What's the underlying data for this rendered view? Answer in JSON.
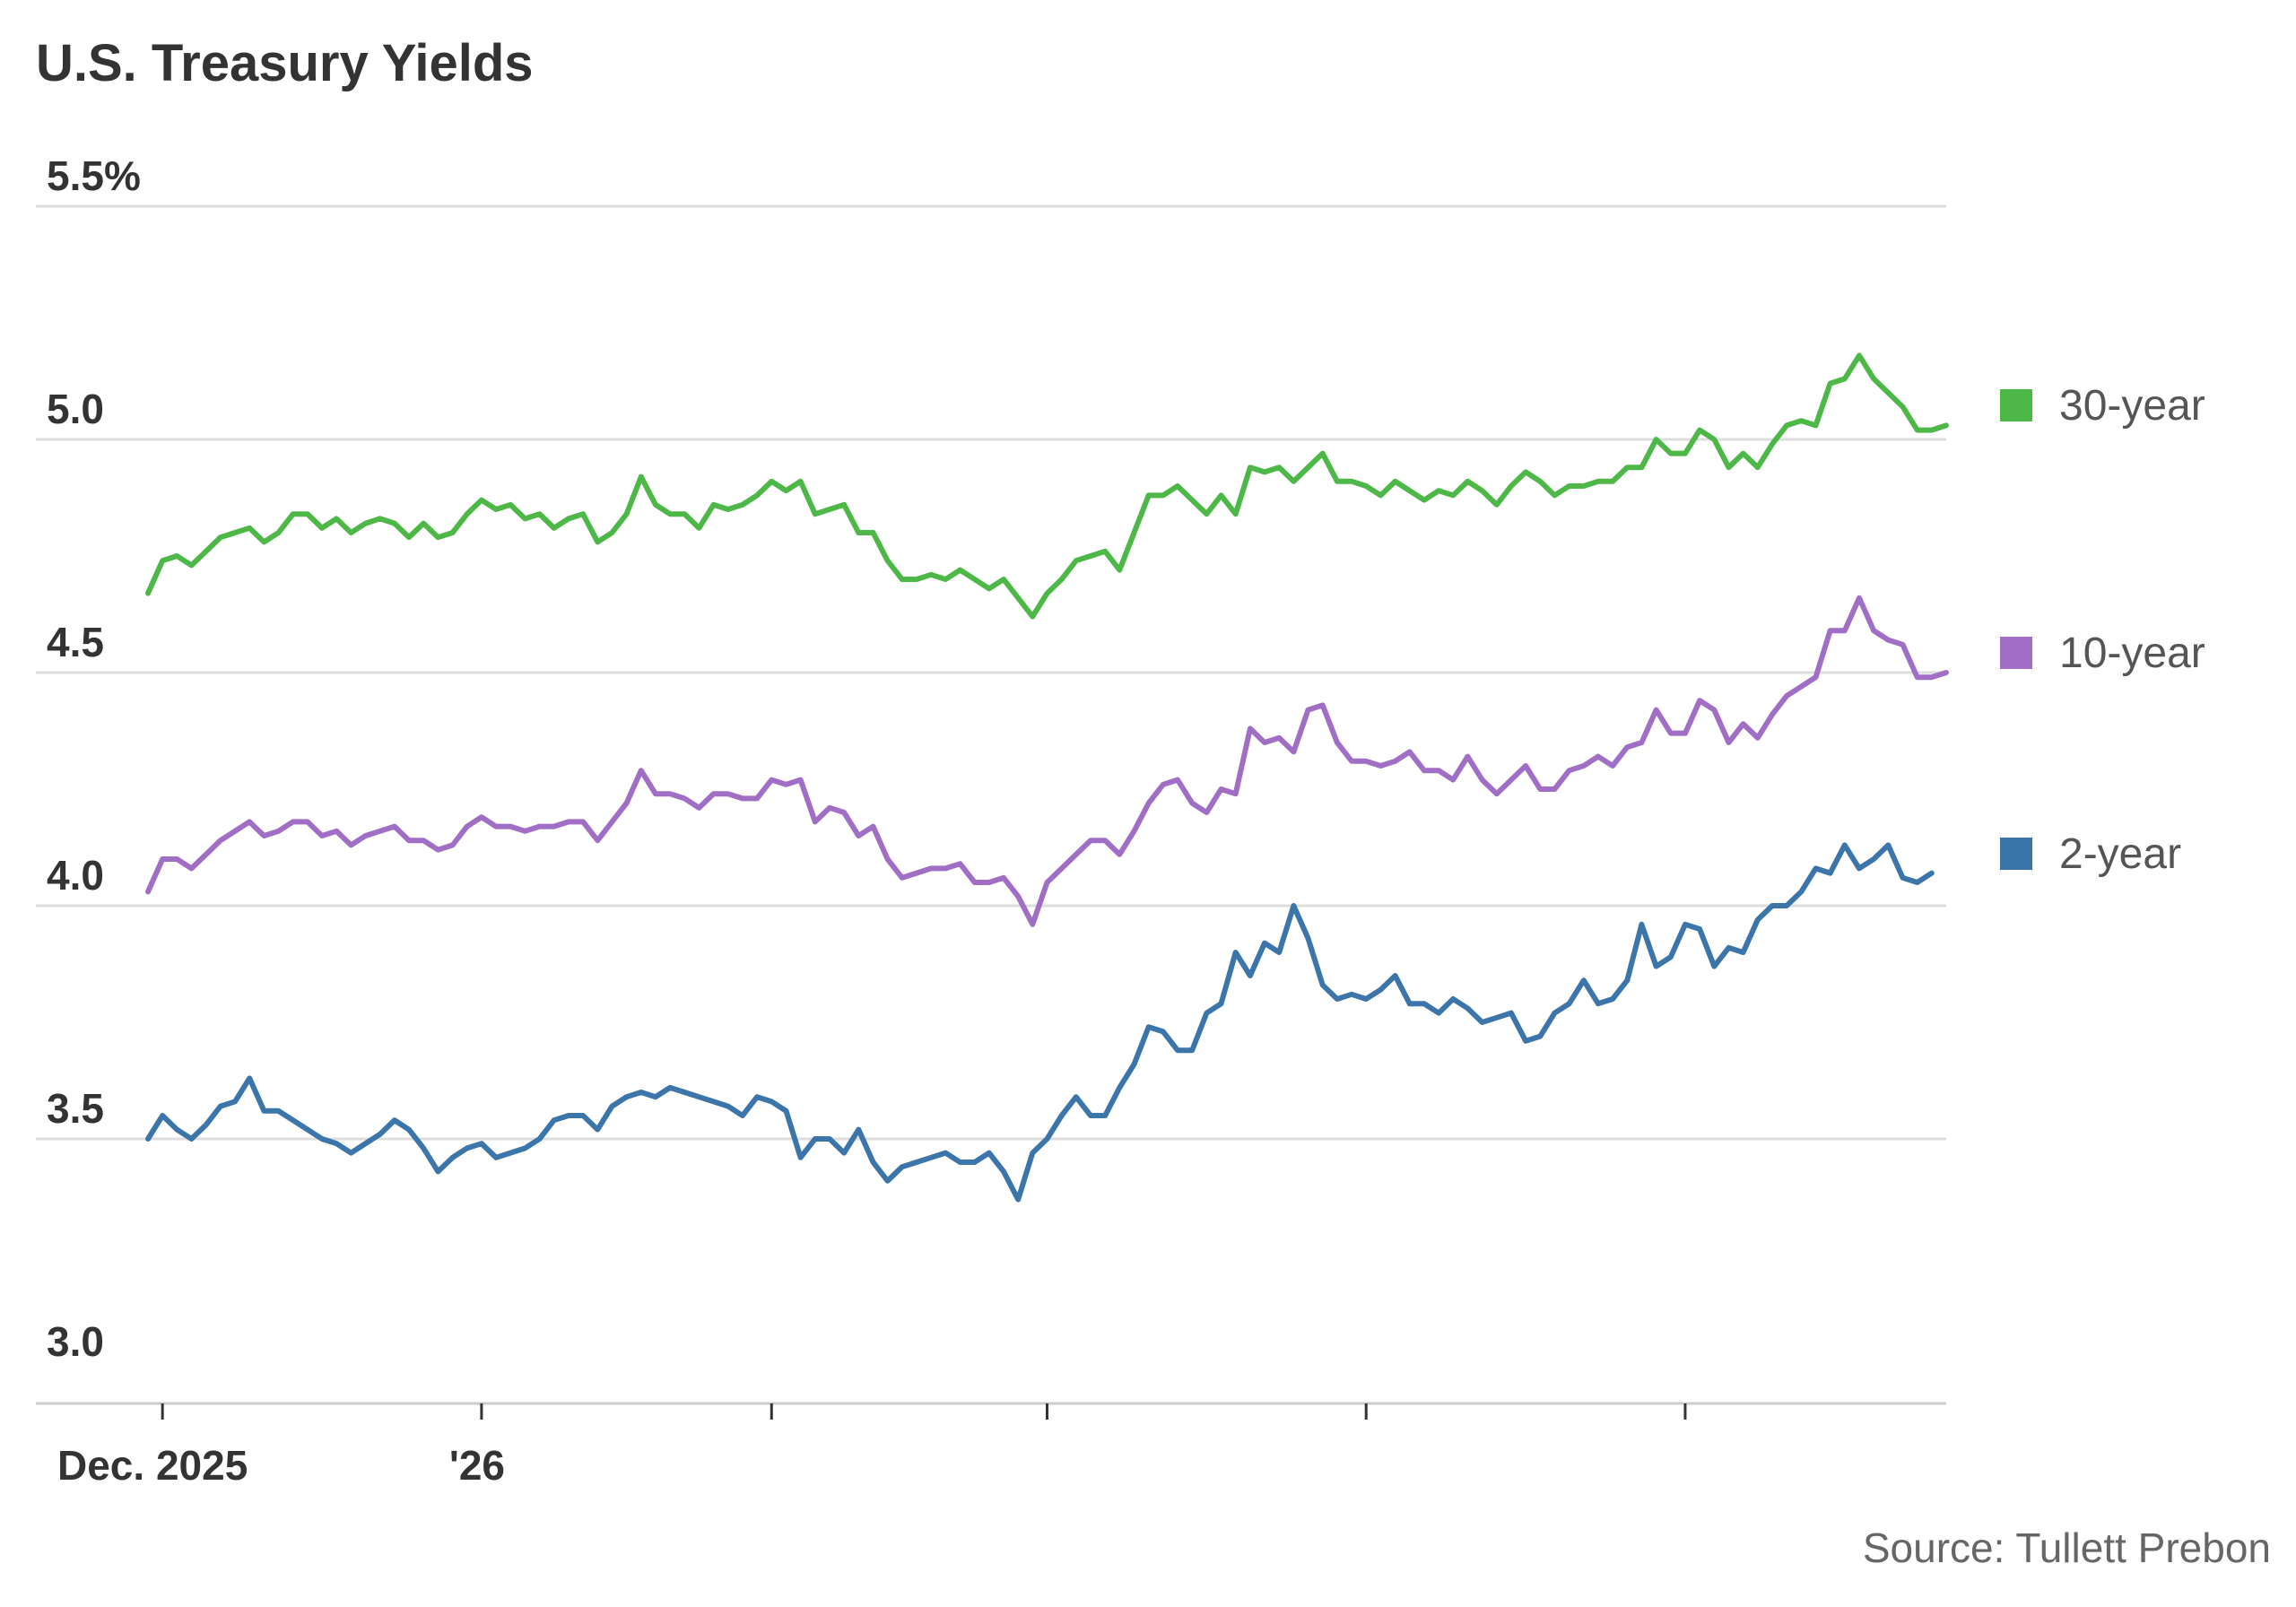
{
  "chart_data": {
    "type": "line",
    "title": "U.S. Treasury Yields",
    "source": "Source: Tullett Prebon",
    "ylim": [
      3.0,
      5.5
    ],
    "y_ticks": [
      {
        "value": 3.0,
        "label": "3.0"
      },
      {
        "value": 3.5,
        "label": "3.5"
      },
      {
        "value": 4.0,
        "label": "4.0"
      },
      {
        "value": 4.5,
        "label": "4.5"
      },
      {
        "value": 5.0,
        "label": "5.0"
      },
      {
        "value": 5.5,
        "label": "5.5%"
      }
    ],
    "grid": true,
    "legend_placement": "right",
    "x_ticks": [
      {
        "index": 1,
        "label": "Dec. 2025"
      },
      {
        "index": 23,
        "label": "'26"
      },
      {
        "index": 43,
        "label": ""
      },
      {
        "index": 62,
        "label": ""
      },
      {
        "index": 84,
        "label": ""
      },
      {
        "index": 106,
        "label": ""
      }
    ],
    "series": [
      {
        "name": "30-year",
        "color": "#4db848",
        "values": [
          4.67,
          4.74,
          4.75,
          4.73,
          4.76,
          4.79,
          4.8,
          4.81,
          4.78,
          4.8,
          4.84,
          4.84,
          4.81,
          4.83,
          4.8,
          4.82,
          4.83,
          4.82,
          4.79,
          4.82,
          4.79,
          4.8,
          4.84,
          4.87,
          4.85,
          4.86,
          4.83,
          4.84,
          4.81,
          4.83,
          4.84,
          4.78,
          4.8,
          4.84,
          4.92,
          4.86,
          4.84,
          4.84,
          4.81,
          4.86,
          4.85,
          4.86,
          4.88,
          4.91,
          4.89,
          4.91,
          4.84,
          4.85,
          4.86,
          4.8,
          4.8,
          4.74,
          4.7,
          4.7,
          4.71,
          4.7,
          4.72,
          4.7,
          4.68,
          4.7,
          4.66,
          4.62,
          4.67,
          4.7,
          4.74,
          4.75,
          4.76,
          4.72,
          4.8,
          4.88,
          4.88,
          4.9,
          4.87,
          4.84,
          4.88,
          4.84,
          4.94,
          4.93,
          4.94,
          4.91,
          4.94,
          4.97,
          4.91,
          4.91,
          4.9,
          4.88,
          4.91,
          4.89,
          4.87,
          4.89,
          4.88,
          4.91,
          4.89,
          4.86,
          4.9,
          4.93,
          4.91,
          4.88,
          4.9,
          4.9,
          4.91,
          4.91,
          4.94,
          4.94,
          5.0,
          4.97,
          4.97,
          5.02,
          5.0,
          4.94,
          4.97,
          4.94,
          4.99,
          5.03,
          5.04,
          5.03,
          5.12,
          5.13,
          5.18,
          5.13,
          5.1,
          5.07,
          5.02,
          5.02,
          5.03
        ]
      },
      {
        "name": "10-year",
        "color": "#a16ec5",
        "values": [
          4.03,
          4.1,
          4.1,
          4.08,
          4.11,
          4.14,
          4.16,
          4.18,
          4.15,
          4.16,
          4.18,
          4.18,
          4.15,
          4.16,
          4.13,
          4.15,
          4.16,
          4.17,
          4.14,
          4.14,
          4.12,
          4.13,
          4.17,
          4.19,
          4.17,
          4.17,
          4.16,
          4.17,
          4.17,
          4.18,
          4.18,
          4.14,
          4.18,
          4.22,
          4.29,
          4.24,
          4.24,
          4.23,
          4.21,
          4.24,
          4.24,
          4.23,
          4.23,
          4.27,
          4.26,
          4.27,
          4.18,
          4.21,
          4.2,
          4.15,
          4.17,
          4.1,
          4.06,
          4.07,
          4.08,
          4.08,
          4.09,
          4.05,
          4.05,
          4.06,
          4.02,
          3.96,
          4.05,
          4.08,
          4.11,
          4.14,
          4.14,
          4.11,
          4.16,
          4.22,
          4.26,
          4.27,
          4.22,
          4.2,
          4.25,
          4.24,
          4.38,
          4.35,
          4.36,
          4.33,
          4.42,
          4.43,
          4.35,
          4.31,
          4.31,
          4.3,
          4.31,
          4.33,
          4.29,
          4.29,
          4.27,
          4.32,
          4.27,
          4.24,
          4.27,
          4.3,
          4.25,
          4.25,
          4.29,
          4.3,
          4.32,
          4.3,
          4.34,
          4.35,
          4.42,
          4.37,
          4.37,
          4.44,
          4.42,
          4.35,
          4.39,
          4.36,
          4.41,
          4.45,
          4.47,
          4.49,
          4.59,
          4.59,
          4.66,
          4.59,
          4.57,
          4.56,
          4.49,
          4.49,
          4.5
        ]
      },
      {
        "name": "2-year",
        "color": "#3b75a9",
        "values": [
          3.5,
          3.55,
          3.52,
          3.5,
          3.53,
          3.57,
          3.58,
          3.63,
          3.56,
          3.56,
          3.54,
          3.52,
          3.5,
          3.49,
          3.47,
          3.49,
          3.51,
          3.54,
          3.52,
          3.48,
          3.43,
          3.46,
          3.48,
          3.49,
          3.46,
          3.47,
          3.48,
          3.5,
          3.54,
          3.55,
          3.55,
          3.52,
          3.57,
          3.59,
          3.6,
          3.59,
          3.61,
          3.6,
          3.59,
          3.58,
          3.57,
          3.55,
          3.59,
          3.58,
          3.56,
          3.46,
          3.5,
          3.5,
          3.47,
          3.52,
          3.45,
          3.41,
          3.44,
          3.45,
          3.46,
          3.47,
          3.45,
          3.45,
          3.47,
          3.43,
          3.37,
          3.47,
          3.5,
          3.55,
          3.59,
          3.55,
          3.55,
          3.61,
          3.66,
          3.74,
          3.73,
          3.69,
          3.69,
          3.77,
          3.79,
          3.9,
          3.85,
          3.92,
          3.9,
          4.0,
          3.93,
          3.83,
          3.8,
          3.81,
          3.8,
          3.82,
          3.85,
          3.79,
          3.79,
          3.77,
          3.8,
          3.78,
          3.75,
          3.76,
          3.77,
          3.71,
          3.72,
          3.77,
          3.79,
          3.84,
          3.79,
          3.8,
          3.84,
          3.96,
          3.87,
          3.89,
          3.96,
          3.95,
          3.87,
          3.91,
          3.9,
          3.97,
          4.0,
          4.0,
          4.03,
          4.08,
          4.07,
          4.13,
          4.08,
          4.1,
          4.13,
          4.06,
          4.05,
          4.07
        ]
      }
    ]
  }
}
